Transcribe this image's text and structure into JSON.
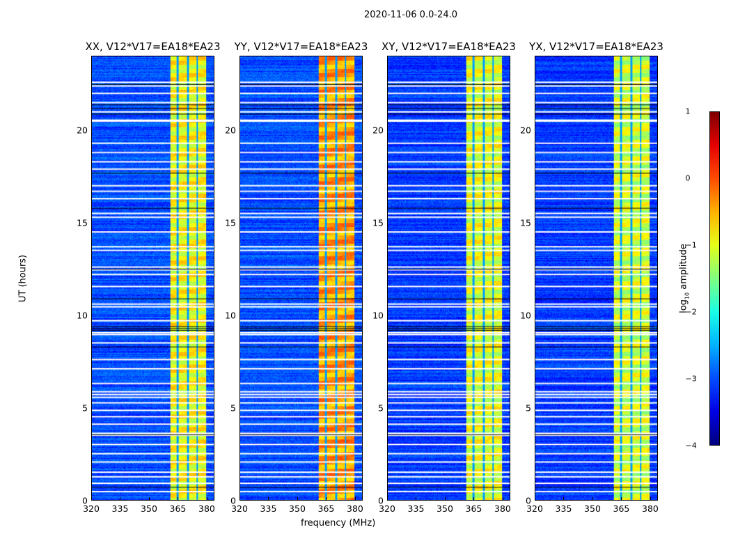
{
  "chart_data": {
    "type": "heatmap",
    "suptitle": "2020-11-06 0.0-24.0",
    "xlabel": "frequency (MHz)",
    "ylabel": "UT (hours)",
    "xlim": [
      320,
      384
    ],
    "ylim": [
      0,
      24
    ],
    "xticks": [
      "320",
      "335",
      "350",
      "365",
      "380"
    ],
    "xtick_values": [
      320,
      335,
      350,
      365,
      380
    ],
    "yticks": [
      "0",
      "5",
      "10",
      "15",
      "20"
    ],
    "ytick_values": [
      0,
      5,
      10,
      15,
      20
    ],
    "colorbar": {
      "label_main": "log",
      "label_sub": "10",
      "label_rest": " amplitude",
      "range": [
        -4,
        1
      ],
      "ticks": [
        "1",
        "0",
        "−1",
        "−2",
        "−3",
        "−4"
      ],
      "tick_values": [
        1,
        0,
        -1,
        -2,
        -3,
        -4
      ],
      "colormap": "jet"
    },
    "panels": [
      {
        "title": "XX, V12*V17=EA18*EA23",
        "band_level": -0.9,
        "background_level": -3.0
      },
      {
        "title": "YY, V12*V17=EA18*EA23",
        "band_level": -0.4,
        "background_level": -3.0
      },
      {
        "title": "XY, V12*V17=EA18*EA23",
        "band_level": -1.0,
        "background_level": -3.1
      },
      {
        "title": "YX, V12*V17=EA18*EA23",
        "band_level": -1.1,
        "background_level": -3.1
      }
    ],
    "band_mhz": [
      361,
      380
    ],
    "band_gaps_mhz": [
      364.8,
      370.2,
      375.2
    ],
    "flagged_hours_white": [
      0.45,
      0.9,
      1.25,
      1.5,
      2.05,
      2.5,
      3.0,
      3.5,
      3.6,
      4.1,
      4.5,
      4.85,
      5.25,
      5.55,
      5.7,
      5.85,
      6.3,
      7.1,
      7.6,
      8.5,
      8.95,
      9.05,
      9.7,
      10.45,
      10.6,
      11.55,
      12.2,
      12.45,
      12.6,
      13.5,
      13.7,
      14.5,
      15.3,
      15.5,
      16.3,
      16.7,
      17.0,
      17.9,
      18.3,
      18.8,
      19.3,
      20.5,
      20.55,
      21.0,
      21.5,
      22.0,
      22.4,
      22.6
    ],
    "flagged_hours_black": [
      0.7,
      3.55,
      9.2,
      9.3,
      9.4,
      10.9,
      12.5,
      20.9,
      21.2,
      21.4,
      22.5,
      17.7,
      15.8,
      8.3
    ]
  }
}
